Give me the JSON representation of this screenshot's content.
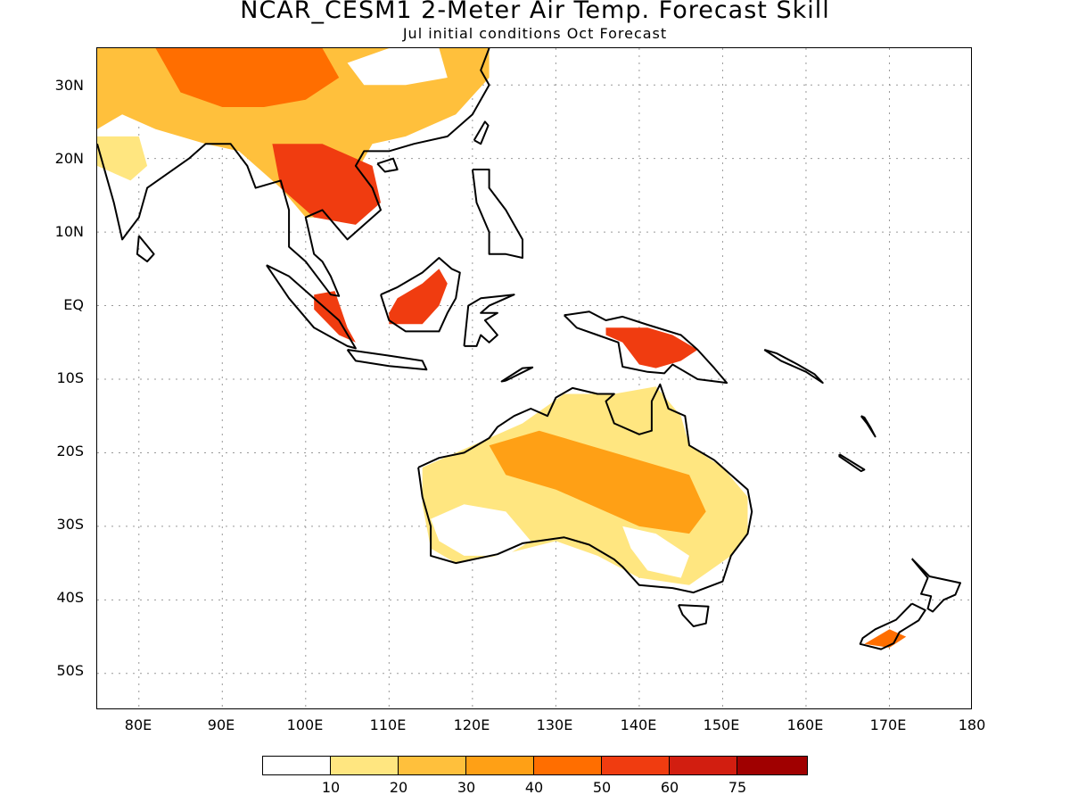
{
  "title": "NCAR_CESM1 2-Meter Air Temp. Forecast Skill",
  "subtitle": "Jul initial conditions  Oct Forecast",
  "map": {
    "projection": "lat-lon",
    "lon_range": [
      75,
      180
    ],
    "lat_range": [
      -55,
      35
    ],
    "grid": true,
    "y_ticks": [
      "30N",
      "20N",
      "10N",
      "EQ",
      "10S",
      "20S",
      "30S",
      "40S",
      "50S"
    ],
    "x_ticks": [
      "80E",
      "90E",
      "100E",
      "110E",
      "120E",
      "130E",
      "140E",
      "150E",
      "160E",
      "170E",
      "180"
    ]
  },
  "colorbar": {
    "labels": [
      "10",
      "20",
      "30",
      "40",
      "50",
      "60",
      "75"
    ],
    "colors": [
      "#ffffff",
      "#ffe680",
      "#ffc03c",
      "#ffa015",
      "#ff6e00",
      "#f03c10",
      "#d21e10",
      "#a00000"
    ]
  },
  "skill_regions": [
    {
      "name": "asia-mainland",
      "level": 2,
      "pts": [
        [
          75,
          35
        ],
        [
          122,
          35
        ],
        [
          122,
          31
        ],
        [
          118,
          26
        ],
        [
          112,
          23
        ],
        [
          108,
          22
        ],
        [
          106,
          18
        ],
        [
          104,
          12
        ],
        [
          100,
          12
        ],
        [
          97,
          16
        ],
        [
          92,
          21
        ],
        [
          88,
          22
        ],
        [
          82,
          24
        ],
        [
          78,
          26
        ],
        [
          75,
          24
        ]
      ]
    },
    {
      "name": "tibet-high",
      "level": 4,
      "pts": [
        [
          82,
          35
        ],
        [
          102,
          35
        ],
        [
          104,
          31
        ],
        [
          100,
          28
        ],
        [
          95,
          27
        ],
        [
          90,
          27
        ],
        [
          85,
          29
        ]
      ]
    },
    {
      "name": "indochina-high",
      "level": 5,
      "pts": [
        [
          96,
          22
        ],
        [
          102,
          22
        ],
        [
          108,
          19
        ],
        [
          109,
          14
        ],
        [
          106,
          11
        ],
        [
          101,
          12
        ],
        [
          97,
          16
        ]
      ]
    },
    {
      "name": "north-china-white",
      "level": 0,
      "pts": [
        [
          105,
          33
        ],
        [
          110,
          35
        ],
        [
          116,
          35
        ],
        [
          117,
          31
        ],
        [
          112,
          30
        ],
        [
          107,
          30
        ]
      ]
    },
    {
      "name": "india-west",
      "level": 1,
      "pts": [
        [
          75,
          23
        ],
        [
          80,
          23
        ],
        [
          81,
          19
        ],
        [
          79,
          17
        ],
        [
          75,
          19
        ]
      ]
    },
    {
      "name": "sumatra",
      "level": 5,
      "pts": [
        [
          101,
          1.5
        ],
        [
          103.5,
          2
        ],
        [
          105,
          -3
        ],
        [
          106,
          -5
        ],
        [
          104,
          -4
        ],
        [
          101,
          -0.5
        ]
      ]
    },
    {
      "name": "borneo",
      "level": 5,
      "pts": [
        [
          110,
          -1
        ],
        [
          111,
          1
        ],
        [
          114,
          3
        ],
        [
          116,
          5
        ],
        [
          117,
          3
        ],
        [
          116,
          0
        ],
        [
          114,
          -2.5
        ],
        [
          110,
          -2.5
        ]
      ]
    },
    {
      "name": "new-guinea",
      "level": 5,
      "pts": [
        [
          136,
          -3
        ],
        [
          141,
          -3
        ],
        [
          144,
          -4
        ],
        [
          147,
          -6
        ],
        [
          145,
          -7.5
        ],
        [
          142,
          -8.5
        ],
        [
          140,
          -8
        ],
        [
          138,
          -5
        ],
        [
          136,
          -4
        ]
      ]
    },
    {
      "name": "australia-base",
      "level": 1,
      "pts": [
        [
          114,
          -22
        ],
        [
          120,
          -19
        ],
        [
          126,
          -16
        ],
        [
          131,
          -12
        ],
        [
          137,
          -12
        ],
        [
          142,
          -11
        ],
        [
          145,
          -15
        ],
        [
          146,
          -19
        ],
        [
          150,
          -22
        ],
        [
          153,
          -26
        ],
        [
          153,
          -31
        ],
        [
          151,
          -34
        ],
        [
          146,
          -38
        ],
        [
          140,
          -37
        ],
        [
          135,
          -34
        ],
        [
          130,
          -32
        ],
        [
          123,
          -34
        ],
        [
          118,
          -35
        ],
        [
          115,
          -33
        ],
        [
          114,
          -27
        ]
      ]
    },
    {
      "name": "australia-mid",
      "level": 3,
      "pts": [
        [
          122,
          -19
        ],
        [
          128,
          -17
        ],
        [
          134,
          -19
        ],
        [
          140,
          -21
        ],
        [
          146,
          -23
        ],
        [
          148,
          -28
        ],
        [
          146,
          -31
        ],
        [
          140,
          -30
        ],
        [
          136,
          -28
        ],
        [
          130,
          -25
        ],
        [
          124,
          -23
        ]
      ]
    },
    {
      "name": "australia-white-w",
      "level": 0,
      "pts": [
        [
          115,
          -29
        ],
        [
          119,
          -27
        ],
        [
          124,
          -28
        ],
        [
          127,
          -32
        ],
        [
          124,
          -34
        ],
        [
          119,
          -34
        ],
        [
          116,
          -32
        ]
      ]
    },
    {
      "name": "australia-white-c",
      "level": 0,
      "pts": [
        [
          138,
          -30
        ],
        [
          142,
          -31
        ],
        [
          146,
          -34
        ],
        [
          145,
          -37
        ],
        [
          141,
          -36
        ],
        [
          139,
          -33
        ]
      ]
    },
    {
      "name": "new-zealand",
      "level": 4,
      "pts": [
        [
          167,
          -46
        ],
        [
          170,
          -44
        ],
        [
          172,
          -45
        ],
        [
          170,
          -46.5
        ]
      ]
    }
  ],
  "coastlines": [
    {
      "name": "asia-coast",
      "pts": [
        [
          75,
          22
        ],
        [
          77,
          14
        ],
        [
          78,
          9
        ],
        [
          80,
          12
        ],
        [
          81,
          16
        ],
        [
          86,
          20
        ],
        [
          88,
          22
        ],
        [
          91,
          22
        ],
        [
          93,
          19
        ],
        [
          94,
          16
        ],
        [
          97,
          17
        ],
        [
          98,
          13
        ],
        [
          98,
          8
        ],
        [
          100,
          6
        ],
        [
          103,
          1.5
        ],
        [
          104,
          1.3
        ],
        [
          103,
          4
        ],
        [
          102,
          6
        ],
        [
          101,
          7
        ],
        [
          100,
          12
        ],
        [
          102,
          13
        ],
        [
          105,
          9
        ],
        [
          107,
          11
        ],
        [
          109,
          13
        ],
        [
          108,
          16
        ],
        [
          106,
          19
        ],
        [
          107,
          21
        ],
        [
          110,
          21
        ],
        [
          113,
          22
        ],
        [
          117,
          23
        ],
        [
          120,
          26
        ],
        [
          122,
          30
        ],
        [
          121,
          32
        ],
        [
          122,
          35
        ]
      ]
    },
    {
      "name": "sri-lanka",
      "pts": [
        [
          80,
          9.5
        ],
        [
          81.8,
          7
        ],
        [
          81,
          6
        ],
        [
          79.8,
          7
        ],
        [
          80,
          9.5
        ]
      ]
    },
    {
      "name": "sumatra",
      "pts": [
        [
          95.3,
          5.5
        ],
        [
          98,
          4
        ],
        [
          104,
          -2
        ],
        [
          106,
          -5.8
        ],
        [
          105,
          -5.5
        ],
        [
          101,
          -3
        ],
        [
          98,
          1
        ],
        [
          95.3,
          5.5
        ]
      ]
    },
    {
      "name": "java",
      "pts": [
        [
          105,
          -6
        ],
        [
          110,
          -6.8
        ],
        [
          114,
          -7.5
        ],
        [
          114.5,
          -8.7
        ],
        [
          110,
          -8.2
        ],
        [
          106,
          -7.5
        ],
        [
          105,
          -6
        ]
      ]
    },
    {
      "name": "borneo",
      "pts": [
        [
          109,
          1.5
        ],
        [
          111,
          2.5
        ],
        [
          114,
          4.5
        ],
        [
          116,
          6.5
        ],
        [
          117.5,
          5
        ],
        [
          118.5,
          4.5
        ],
        [
          118,
          1
        ],
        [
          117,
          -1
        ],
        [
          116,
          -3.5
        ],
        [
          112,
          -3.5
        ],
        [
          110,
          -2
        ],
        [
          109,
          1.5
        ]
      ]
    },
    {
      "name": "sulawesi",
      "pts": [
        [
          119,
          -5.5
        ],
        [
          119.5,
          0
        ],
        [
          121,
          1
        ],
        [
          125,
          1.5
        ],
        [
          122,
          0
        ],
        [
          121,
          -1
        ],
        [
          123,
          -1
        ],
        [
          121.5,
          -2
        ],
        [
          123,
          -4
        ],
        [
          122,
          -5
        ],
        [
          121,
          -4
        ],
        [
          120.5,
          -5.5
        ],
        [
          119,
          -5.5
        ]
      ]
    },
    {
      "name": "philippines",
      "pts": [
        [
          120,
          18.5
        ],
        [
          122,
          18.5
        ],
        [
          122,
          16
        ],
        [
          124,
          13
        ],
        [
          126,
          9
        ],
        [
          126,
          6.5
        ],
        [
          124,
          7
        ],
        [
          122,
          7
        ],
        [
          122,
          10
        ],
        [
          120.5,
          14
        ],
        [
          120,
          18.5
        ]
      ]
    },
    {
      "name": "taiwan",
      "pts": [
        [
          120.2,
          22.5
        ],
        [
          121.5,
          25
        ],
        [
          121.9,
          24.5
        ],
        [
          121,
          22
        ],
        [
          120.2,
          22.5
        ]
      ]
    },
    {
      "name": "hainan",
      "pts": [
        [
          108.6,
          19.3
        ],
        [
          110.5,
          20
        ],
        [
          111,
          18.5
        ],
        [
          109.5,
          18.2
        ],
        [
          108.6,
          19.3
        ]
      ]
    },
    {
      "name": "new-guinea",
      "pts": [
        [
          131,
          -1.3
        ],
        [
          134,
          -0.8
        ],
        [
          136,
          -2
        ],
        [
          138,
          -1.5
        ],
        [
          141,
          -2.6
        ],
        [
          145,
          -4
        ],
        [
          147,
          -6
        ],
        [
          149,
          -8.5
        ],
        [
          150.5,
          -10.5
        ],
        [
          147,
          -10
        ],
        [
          144,
          -8
        ],
        [
          143,
          -9.2
        ],
        [
          141,
          -9
        ],
        [
          138,
          -8.3
        ],
        [
          137.5,
          -5
        ],
        [
          135,
          -4
        ],
        [
          132.5,
          -3
        ],
        [
          131,
          -1.3
        ]
      ]
    },
    {
      "name": "australia",
      "pts": [
        [
          113.5,
          -22
        ],
        [
          114,
          -26
        ],
        [
          115,
          -30
        ],
        [
          115,
          -34
        ],
        [
          118,
          -35
        ],
        [
          123,
          -33.8
        ],
        [
          126,
          -32.3
        ],
        [
          131,
          -31.5
        ],
        [
          134,
          -32.5
        ],
        [
          137,
          -34.5
        ],
        [
          138,
          -35.5
        ],
        [
          140,
          -38
        ],
        [
          144,
          -38.4
        ],
        [
          146.5,
          -39
        ],
        [
          150,
          -37.5
        ],
        [
          151,
          -34
        ],
        [
          153,
          -31
        ],
        [
          153.5,
          -28
        ],
        [
          153,
          -25
        ],
        [
          151,
          -23
        ],
        [
          149,
          -21
        ],
        [
          146,
          -19
        ],
        [
          145.5,
          -15
        ],
        [
          143.5,
          -14
        ],
        [
          142.5,
          -10.7
        ],
        [
          141.5,
          -13
        ],
        [
          141.5,
          -17
        ],
        [
          140,
          -17.5
        ],
        [
          137,
          -16
        ],
        [
          136,
          -13
        ],
        [
          137,
          -12
        ],
        [
          135,
          -12
        ],
        [
          132,
          -11.2
        ],
        [
          130,
          -12.5
        ],
        [
          129,
          -15
        ],
        [
          127,
          -14
        ],
        [
          125,
          -15
        ],
        [
          123,
          -16.5
        ],
        [
          122,
          -18
        ],
        [
          119,
          -20
        ],
        [
          116,
          -20.7
        ],
        [
          113.5,
          -22
        ]
      ]
    },
    {
      "name": "tasmania",
      "pts": [
        [
          144.7,
          -40.7
        ],
        [
          148.3,
          -40.9
        ],
        [
          148,
          -43.2
        ],
        [
          146.5,
          -43.6
        ],
        [
          145.2,
          -42
        ],
        [
          144.7,
          -40.7
        ]
      ]
    },
    {
      "name": "nz-north",
      "pts": [
        [
          172.7,
          -34.4
        ],
        [
          174.8,
          -36.8
        ],
        [
          178.5,
          -37.7
        ],
        [
          177.9,
          -39.3
        ],
        [
          176.5,
          -40
        ],
        [
          175.2,
          -41.6
        ],
        [
          174.6,
          -41.2
        ],
        [
          175,
          -39.5
        ],
        [
          173.8,
          -39.2
        ],
        [
          174.6,
          -37
        ],
        [
          172.7,
          -34.4
        ]
      ]
    },
    {
      "name": "nz-south",
      "pts": [
        [
          172.7,
          -40.5
        ],
        [
          174.3,
          -41.4
        ],
        [
          173.5,
          -42.8
        ],
        [
          171.2,
          -44.4
        ],
        [
          170.5,
          -45.9
        ],
        [
          169,
          -46.7
        ],
        [
          166.5,
          -46
        ],
        [
          166.8,
          -45.2
        ],
        [
          168.3,
          -44
        ],
        [
          170.8,
          -42.7
        ],
        [
          172.7,
          -40.5
        ]
      ]
    },
    {
      "name": "timor",
      "pts": [
        [
          124,
          -10.2
        ],
        [
          127.2,
          -8.4
        ],
        [
          126,
          -8.5
        ],
        [
          123.5,
          -10.3
        ],
        [
          124,
          -10.2
        ]
      ]
    },
    {
      "name": "solomons",
      "pts": [
        [
          155,
          -6
        ],
        [
          157,
          -7.5
        ],
        [
          160,
          -9
        ],
        [
          162,
          -10.5
        ],
        [
          161,
          -9.3
        ],
        [
          159,
          -8
        ],
        [
          156.5,
          -6.5
        ],
        [
          155,
          -6
        ]
      ]
    },
    {
      "name": "new-caledonia",
      "pts": [
        [
          164,
          -20.2
        ],
        [
          167,
          -22.3
        ],
        [
          166.6,
          -22.5
        ],
        [
          164,
          -20.5
        ],
        [
          164,
          -20.2
        ]
      ]
    },
    {
      "name": "vanuatu",
      "pts": [
        [
          166.6,
          -15
        ],
        [
          167.3,
          -16
        ],
        [
          168.3,
          -17.8
        ],
        [
          167.7,
          -16.5
        ],
        [
          167,
          -15.2
        ],
        [
          166.6,
          -15
        ]
      ]
    }
  ]
}
